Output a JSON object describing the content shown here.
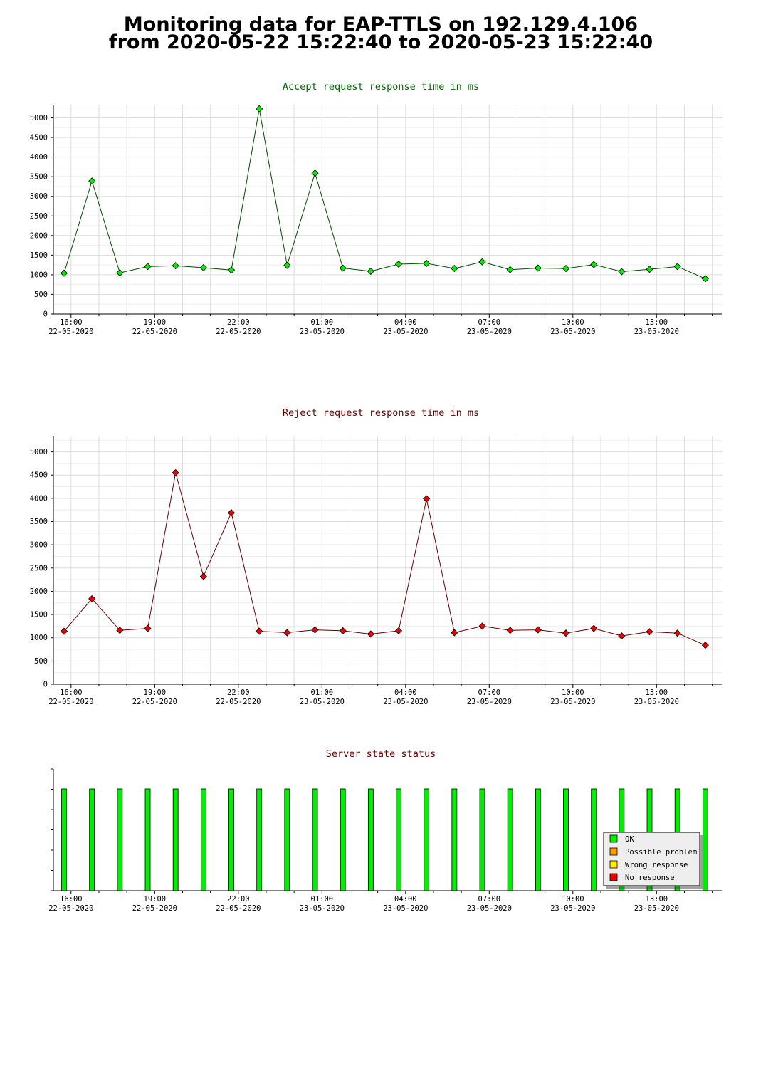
{
  "page": {
    "title_line1": "Monitoring data for EAP-TTLS on 192.129.4.106",
    "title_line2": "from 2020-05-22 15:22:40 to 2020-05-23 15:22:40"
  },
  "x_axis": {
    "tick_times": [
      "16:00",
      "19:00",
      "22:00",
      "01:00",
      "04:00",
      "07:00",
      "10:00",
      "13:00"
    ],
    "tick_dates": [
      "22-05-2020",
      "22-05-2020",
      "22-05-2020",
      "23-05-2020",
      "23-05-2020",
      "23-05-2020",
      "23-05-2020",
      "23-05-2020"
    ]
  },
  "colors": {
    "accept_title": "#006600",
    "reject_title": "#660000",
    "status_title": "#660000",
    "accept_line": "#004d00",
    "accept_marker": "#00ee00",
    "reject_line": "#660000",
    "reject_marker": "#ee0000",
    "ok": "#00ee00",
    "possible_problem": "#ff9900",
    "wrong_response": "#ffee00",
    "no_response": "#ee0000",
    "grid": "#dddddd"
  },
  "chart_data": [
    {
      "id": "accept",
      "type": "line",
      "title": "Accept request response time in ms",
      "ylim": [
        0,
        5300
      ],
      "yticks": [
        0,
        500,
        1000,
        1500,
        2000,
        2500,
        3000,
        3500,
        4000,
        4500,
        5000
      ],
      "x": [
        "2020-05-22 15:45",
        "2020-05-22 16:45",
        "2020-05-22 17:45",
        "2020-05-22 18:45",
        "2020-05-22 19:45",
        "2020-05-22 20:45",
        "2020-05-22 21:45",
        "2020-05-22 22:45",
        "2020-05-22 23:45",
        "2020-05-23 00:45",
        "2020-05-23 01:45",
        "2020-05-23 02:45",
        "2020-05-23 03:45",
        "2020-05-23 04:45",
        "2020-05-23 05:45",
        "2020-05-23 06:45",
        "2020-05-23 07:45",
        "2020-05-23 08:45",
        "2020-05-23 09:45",
        "2020-05-23 10:45",
        "2020-05-23 11:45",
        "2020-05-23 12:45",
        "2020-05-23 13:45",
        "2020-05-23 14:45"
      ],
      "values": [
        1040,
        3390,
        1050,
        1210,
        1230,
        1180,
        1120,
        5230,
        1240,
        3590,
        1170,
        1090,
        1270,
        1290,
        1160,
        1330,
        1130,
        1170,
        1160,
        1260,
        1080,
        1140,
        1210,
        900
      ]
    },
    {
      "id": "reject",
      "type": "line",
      "title": "Reject request response time in ms",
      "ylim": [
        0,
        5300
      ],
      "yticks": [
        0,
        500,
        1000,
        1500,
        2000,
        2500,
        3000,
        3500,
        4000,
        4500,
        5000
      ],
      "x": [
        "2020-05-22 15:45",
        "2020-05-22 16:45",
        "2020-05-22 17:45",
        "2020-05-22 18:45",
        "2020-05-22 19:45",
        "2020-05-22 20:45",
        "2020-05-22 21:45",
        "2020-05-22 22:45",
        "2020-05-22 23:45",
        "2020-05-23 00:45",
        "2020-05-23 01:45",
        "2020-05-23 02:45",
        "2020-05-23 03:45",
        "2020-05-23 04:45",
        "2020-05-23 05:45",
        "2020-05-23 06:45",
        "2020-05-23 07:45",
        "2020-05-23 08:45",
        "2020-05-23 09:45",
        "2020-05-23 10:45",
        "2020-05-23 11:45",
        "2020-05-23 12:45",
        "2020-05-23 13:45",
        "2020-05-23 14:45"
      ],
      "values": [
        1140,
        1840,
        1160,
        1200,
        4550,
        2320,
        3690,
        1140,
        1110,
        1170,
        1150,
        1080,
        1150,
        3990,
        1110,
        1250,
        1160,
        1170,
        1100,
        1200,
        1040,
        1130,
        1100,
        840
      ]
    },
    {
      "id": "status",
      "type": "bar",
      "title": "Server state status",
      "x": [
        "2020-05-22 15:45",
        "2020-05-22 16:45",
        "2020-05-22 17:45",
        "2020-05-22 18:45",
        "2020-05-22 19:45",
        "2020-05-22 20:45",
        "2020-05-22 21:45",
        "2020-05-22 22:45",
        "2020-05-22 23:45",
        "2020-05-23 00:45",
        "2020-05-23 01:45",
        "2020-05-23 02:45",
        "2020-05-23 03:45",
        "2020-05-23 04:45",
        "2020-05-23 05:45",
        "2020-05-23 06:45",
        "2020-05-23 07:45",
        "2020-05-23 08:45",
        "2020-05-23 09:45",
        "2020-05-23 10:45",
        "2020-05-23 11:45",
        "2020-05-23 12:45",
        "2020-05-23 13:45",
        "2020-05-23 14:45"
      ],
      "states": [
        "OK",
        "OK",
        "OK",
        "OK",
        "OK",
        "OK",
        "OK",
        "OK",
        "OK",
        "OK",
        "OK",
        "OK",
        "OK",
        "OK",
        "OK",
        "OK",
        "OK",
        "OK",
        "OK",
        "OK",
        "OK",
        "OK",
        "OK",
        "OK"
      ],
      "legend": [
        "OK",
        "Possible problem",
        "Wrong response",
        "No response"
      ],
      "legend_position": "bottom-right"
    }
  ]
}
